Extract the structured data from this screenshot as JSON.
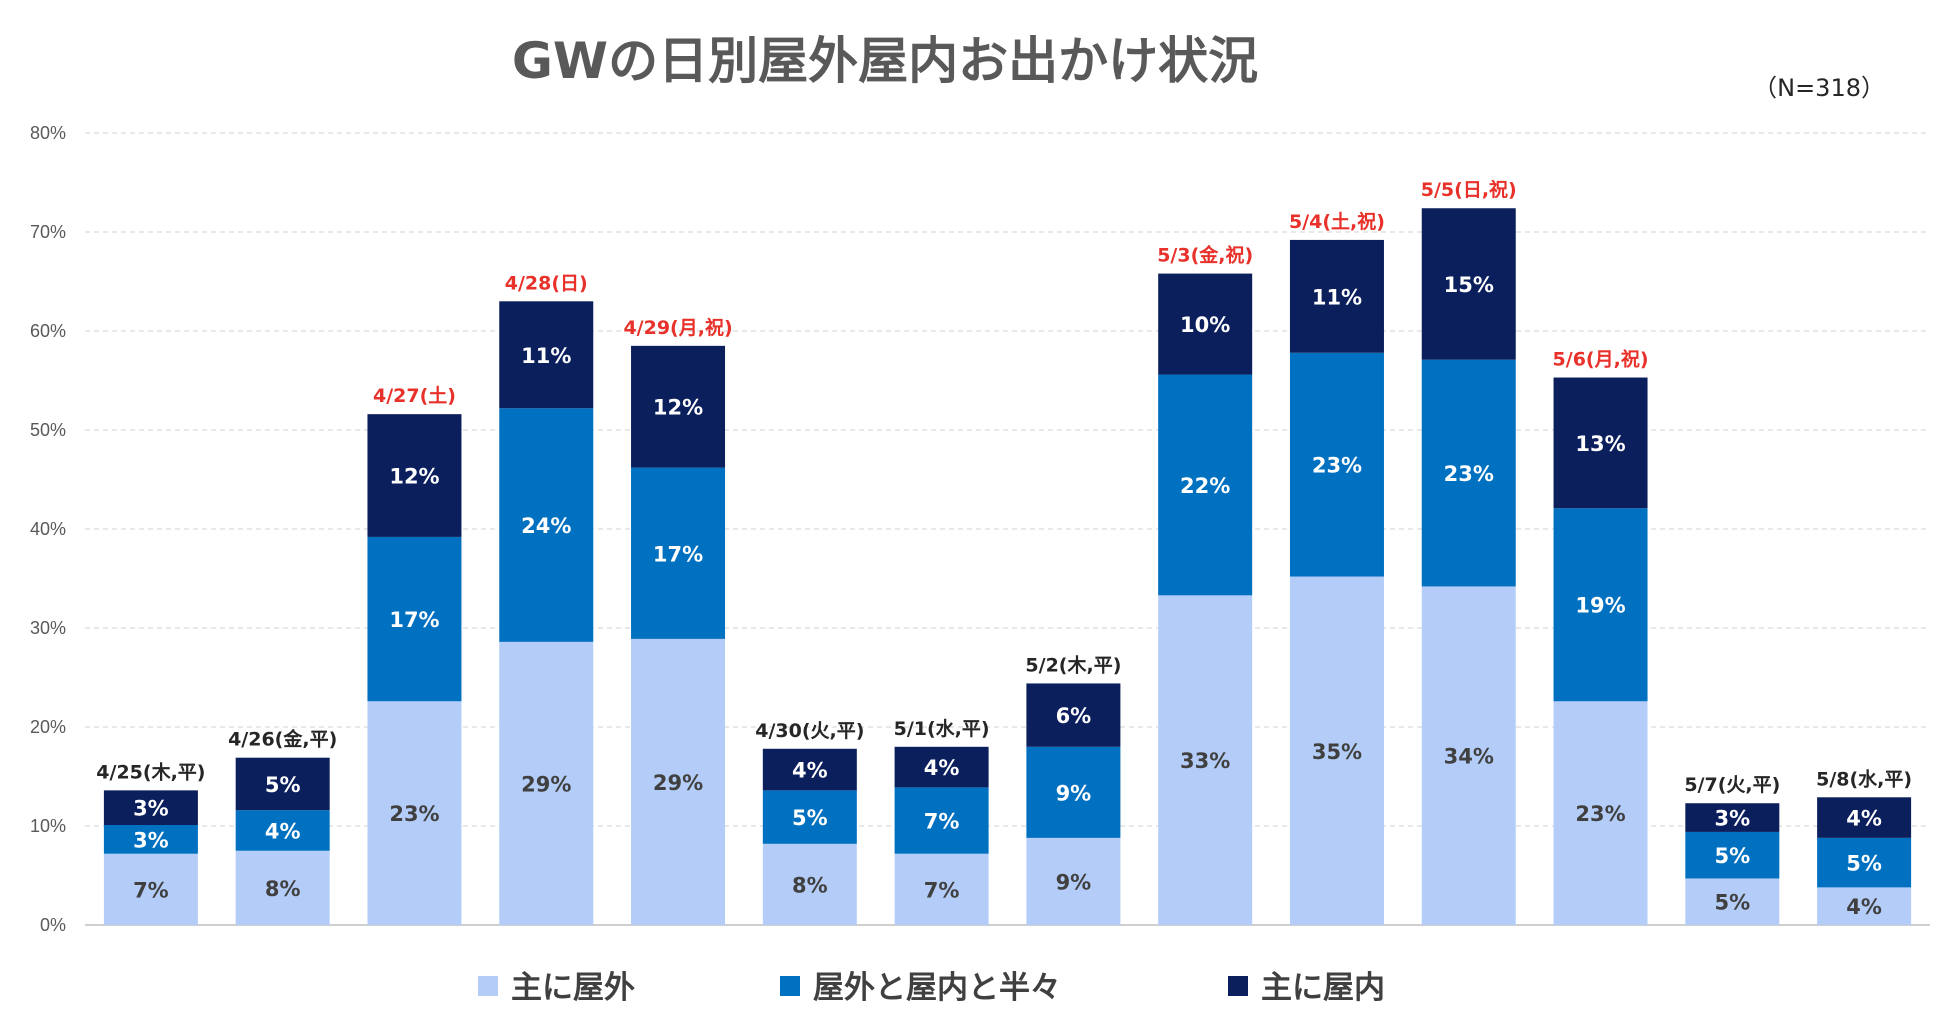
{
  "chart_data": {
    "type": "bar",
    "stacked": true,
    "title": "GWの日別屋外屋内お出かけ状況",
    "note": "（N=318）",
    "ylim": [
      0,
      80
    ],
    "yticks": [
      0,
      10,
      20,
      30,
      40,
      50,
      60,
      70,
      80
    ],
    "ytick_labels": [
      "0%",
      "10%",
      "20%",
      "30%",
      "40%",
      "50%",
      "60%",
      "70%",
      "80%"
    ],
    "grid": true,
    "legend_position": "bottom",
    "categories": [
      "4/25(木,平)",
      "4/26(金,平)",
      "4/27(土)",
      "4/28(日)",
      "4/29(月,祝)",
      "4/30(火,平)",
      "5/1(水,平)",
      "5/2(木,平)",
      "5/3(金,祝)",
      "5/4(土,祝)",
      "5/5(日,祝)",
      "5/6(月,祝)",
      "5/7(火,平)",
      "5/8(水,平)"
    ],
    "holiday": [
      false,
      false,
      true,
      true,
      true,
      false,
      false,
      false,
      true,
      true,
      true,
      true,
      false,
      false
    ],
    "category_colors": {
      "weekday": "#262626",
      "holiday": "#e8312a"
    },
    "series": [
      {
        "name": "主に屋外",
        "color": "#b4cdf8",
        "label_color": "#404040",
        "values": [
          7.2,
          7.5,
          22.6,
          28.6,
          28.9,
          8.2,
          7.2,
          8.8,
          33.3,
          35.2,
          34.2,
          22.6,
          4.7,
          3.8
        ],
        "labels": [
          "7%",
          "8%",
          "23%",
          "29%",
          "29%",
          "8%",
          "7%",
          "9%",
          "33%",
          "35%",
          "34%",
          "23%",
          "5%",
          "4%"
        ]
      },
      {
        "name": "屋外と屋内と半々",
        "color": "#0070c0",
        "label_color": "#ffffff",
        "values": [
          2.9,
          4.1,
          16.6,
          23.6,
          17.3,
          5.4,
          6.7,
          9.2,
          22.3,
          22.6,
          22.9,
          19.5,
          4.7,
          5.0
        ],
        "labels": [
          "3%",
          "4%",
          "17%",
          "24%",
          "17%",
          "5%",
          "7%",
          "9%",
          "22%",
          "23%",
          "23%",
          "19%",
          "5%",
          "5%"
        ]
      },
      {
        "name": "主に屋内",
        "color": "#0b1f5c",
        "label_color": "#ffffff",
        "values": [
          3.5,
          5.3,
          12.4,
          10.8,
          12.3,
          4.2,
          4.1,
          6.4,
          10.2,
          11.4,
          15.3,
          13.2,
          2.9,
          4.1
        ],
        "labels": [
          "3%",
          "5%",
          "12%",
          "11%",
          "12%",
          "4%",
          "4%",
          "6%",
          "10%",
          "11%",
          "15%",
          "13%",
          "3%",
          "4%"
        ]
      }
    ]
  }
}
